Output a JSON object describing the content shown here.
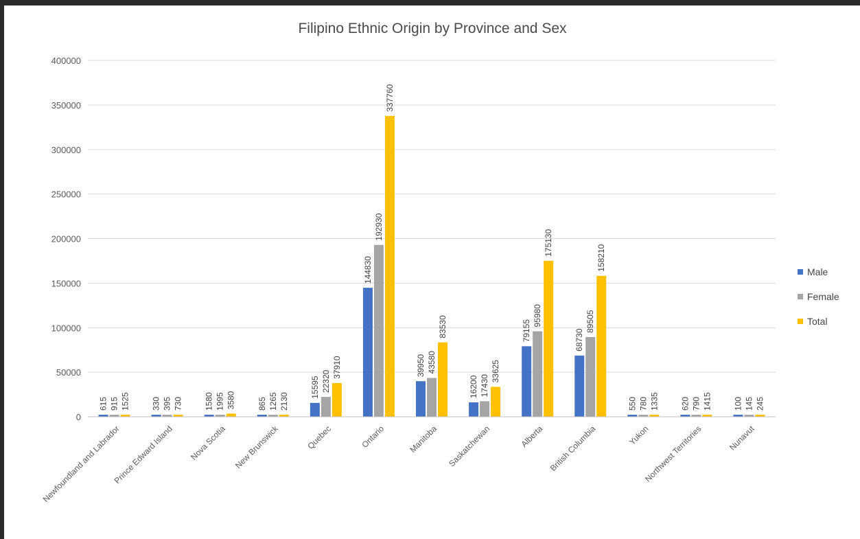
{
  "chart_data": {
    "type": "bar",
    "title": "Filipino  Ethnic Origin by Province  and Sex",
    "categories": [
      "Newfoundland and Labrador",
      "Prince Edward Island",
      "Nova Scotia",
      "New Brunswick",
      "Quebec",
      "Ontario",
      "Manitoba",
      "Saskatchewan",
      "Alberta",
      "British Columbia",
      "Yukon",
      "Northwest Territories",
      "Nunavut"
    ],
    "series": [
      {
        "name": "Male",
        "color": "#4472c4",
        "values": [
          615,
          330,
          1580,
          865,
          15595,
          144830,
          39950,
          16200,
          79155,
          68730,
          550,
          620,
          100
        ],
        "labels": [
          "615",
          "330",
          "1580",
          "865",
          "15595",
          "144830",
          "39950",
          "16200",
          "79155",
          "68730",
          "550",
          "620",
          "100"
        ]
      },
      {
        "name": "Female",
        "color": "#a5a5a5",
        "values": [
          915,
          395,
          1995,
          1265,
          22320,
          192930,
          43580,
          17430,
          95980,
          89505,
          780,
          790,
          145
        ],
        "labels": [
          "915",
          "395",
          "1995",
          "1265",
          "22320",
          "192930",
          "43580",
          "17430",
          "95980",
          "89505",
          "780",
          "790",
          "145"
        ]
      },
      {
        "name": "Total",
        "color": "#ffc000",
        "values": [
          1525,
          730,
          3580,
          2130,
          37910,
          337760,
          83530,
          33625,
          175130,
          158210,
          1335,
          1415,
          245
        ],
        "labels": [
          "1525",
          "730",
          "3580",
          "2130",
          "37910",
          "337760",
          "83530",
          "33625",
          "175130",
          "158210",
          "1335",
          "1415",
          "245"
        ]
      }
    ],
    "yticks": [
      "0",
      "50000",
      "100000",
      "150000",
      "200000",
      "250000",
      "300000",
      "350000",
      "400000"
    ],
    "ylim": [
      0,
      400000
    ],
    "grid": true,
    "legend_position": "right"
  }
}
